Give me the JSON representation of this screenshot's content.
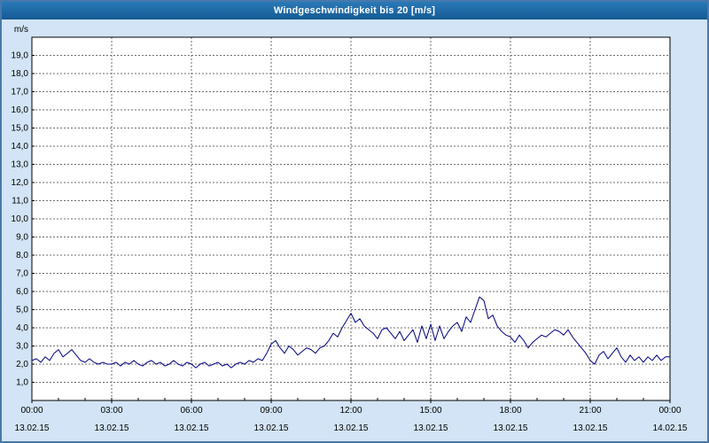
{
  "window": {
    "title": "Windgeschwindigkeit bis 20 [m/s]"
  },
  "colors": {
    "page_background": "#d2e4f5",
    "window_border": "#4779ab",
    "title_bar_background": "#17639f",
    "title_text": "#ffffff",
    "plot_background": "#ffffff",
    "plot_border": "#000000",
    "grid_line": "#6e6e6e",
    "axis_text": "#000000",
    "series_line": "#00007f"
  },
  "chart_data": {
    "type": "line",
    "title": "Windgeschwindigkeit bis 20 [m/s]",
    "ylabel": "m/s",
    "xlabel": "",
    "ylim": [
      0,
      20
    ],
    "ytick_step": 1,
    "decimal_separator": ",",
    "grid": "dashed",
    "legend": "none",
    "x_axis": {
      "span_hours": 24,
      "major_tick_hours": 3,
      "minor_tick_hours": 1,
      "ticks": [
        {
          "time": "00:00",
          "date": "13.02.15"
        },
        {
          "time": "03:00",
          "date": "13.02.15"
        },
        {
          "time": "06:00",
          "date": "13.02.15"
        },
        {
          "time": "09:00",
          "date": "13.02.15"
        },
        {
          "time": "12:00",
          "date": "13.02.15"
        },
        {
          "time": "15:00",
          "date": "13.02.15"
        },
        {
          "time": "18:00",
          "date": "13.02.15"
        },
        {
          "time": "21:00",
          "date": "13.02.15"
        },
        {
          "time": "00:00",
          "date": "14.02.15"
        }
      ]
    },
    "series": [
      {
        "name": "Windgeschwindigkeit",
        "color": "#00007f",
        "start_time": "00:00",
        "sample_interval_minutes": 10,
        "values": [
          2.2,
          2.3,
          2.1,
          2.4,
          2.2,
          2.6,
          2.8,
          2.4,
          2.6,
          2.8,
          2.5,
          2.2,
          2.1,
          2.3,
          2.1,
          2.0,
          2.1,
          2.0,
          2.0,
          2.1,
          1.9,
          2.1,
          2.0,
          2.2,
          2.0,
          1.9,
          2.1,
          2.2,
          2.0,
          2.1,
          1.9,
          2.0,
          2.2,
          2.0,
          1.9,
          2.1,
          2.0,
          1.8,
          2.0,
          2.1,
          1.9,
          2.0,
          2.1,
          1.9,
          2.0,
          1.8,
          2.0,
          2.1,
          2.0,
          2.2,
          2.1,
          2.3,
          2.2,
          2.6,
          3.1,
          3.3,
          2.9,
          2.6,
          3.0,
          2.8,
          2.5,
          2.7,
          2.9,
          2.8,
          2.6,
          2.9,
          3.0,
          3.3,
          3.7,
          3.5,
          4.0,
          4.4,
          4.8,
          4.3,
          4.5,
          4.1,
          3.9,
          3.7,
          3.4,
          3.9,
          4.0,
          3.7,
          3.4,
          3.8,
          3.3,
          3.6,
          3.9,
          3.2,
          4.1,
          3.4,
          4.2,
          3.3,
          4.1,
          3.4,
          3.8,
          4.1,
          4.3,
          3.8,
          4.6,
          4.3,
          5.0,
          5.7,
          5.5,
          4.5,
          4.7,
          4.1,
          3.8,
          3.6,
          3.5,
          3.2,
          3.6,
          3.3,
          2.9,
          3.2,
          3.4,
          3.6,
          3.5,
          3.7,
          3.9,
          3.8,
          3.6,
          3.9,
          3.5,
          3.2,
          2.9,
          2.6,
          2.2,
          2.0,
          2.5,
          2.7,
          2.3,
          2.6,
          2.9,
          2.4,
          2.1,
          2.5,
          2.2,
          2.4,
          2.1,
          2.4,
          2.2,
          2.5,
          2.2,
          2.4,
          2.4
        ]
      }
    ]
  }
}
